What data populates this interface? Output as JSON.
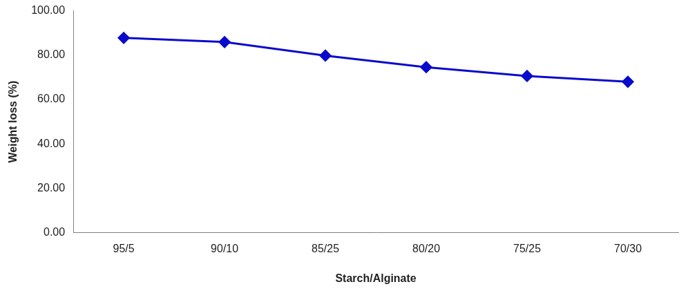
{
  "chart_data": {
    "type": "line",
    "x_label": "Starch/Alginate",
    "y_label": "Weight loss (%)",
    "categories": [
      "95/5",
      "90/10",
      "85/25",
      "80/20",
      "75/25",
      "70/30"
    ],
    "values": [
      87.8,
      85.9,
      79.8,
      74.6,
      70.6,
      68.0
    ],
    "color": "#0a0acc",
    "marker": "diamond",
    "line_style": "solid",
    "ylim": [
      0,
      100
    ],
    "yticks": [
      {
        "value": 0,
        "label": "0.00"
      },
      {
        "value": 20,
        "label": "20.00"
      },
      {
        "value": 40,
        "label": "40.00"
      },
      {
        "value": 60,
        "label": "60.00"
      },
      {
        "value": 80,
        "label": "80.00"
      },
      {
        "value": 100,
        "label": "100.00"
      }
    ],
    "grid": false
  }
}
